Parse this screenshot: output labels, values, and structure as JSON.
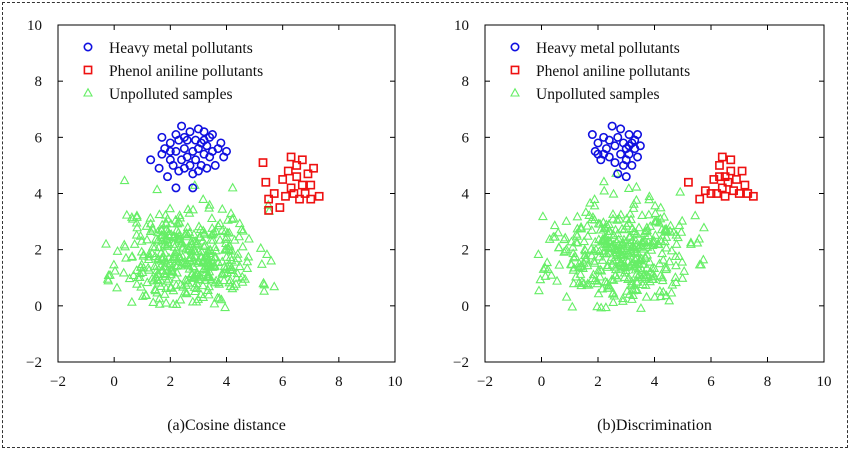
{
  "chart_data": [
    {
      "type": "scatter",
      "caption": "(a)Cosine distance",
      "xlim": [
        -2,
        10
      ],
      "ylim": [
        -2,
        10
      ],
      "xticks": [
        -2,
        0,
        2,
        4,
        6,
        8,
        10
      ],
      "yticks": [
        -2,
        0,
        2,
        4,
        6,
        8,
        10
      ],
      "tick_labels_x": [
        "−2",
        "0",
        "2",
        "4",
        "6",
        "8",
        "10"
      ],
      "tick_labels_y": [
        "−2",
        "0",
        "2",
        "4",
        "6",
        "8",
        "10"
      ],
      "legend_position": "top-left",
      "grid": false,
      "series": [
        {
          "name": "Heavy metal pollutants",
          "marker": "circle",
          "color": "#1010e0",
          "points": [
            [
              1.3,
              5.2
            ],
            [
              1.6,
              4.9
            ],
            [
              1.7,
              5.4
            ],
            [
              1.7,
              6.0
            ],
            [
              1.8,
              5.6
            ],
            [
              1.9,
              4.6
            ],
            [
              2.0,
              5.2
            ],
            [
              2.0,
              5.8
            ],
            [
              2.1,
              5.0
            ],
            [
              2.2,
              6.1
            ],
            [
              2.2,
              5.5
            ],
            [
              2.3,
              4.8
            ],
            [
              2.3,
              5.9
            ],
            [
              2.4,
              5.2
            ],
            [
              2.4,
              6.4
            ],
            [
              2.5,
              5.6
            ],
            [
              2.5,
              4.9
            ],
            [
              2.6,
              5.9
            ],
            [
              2.6,
              5.3
            ],
            [
              2.7,
              6.2
            ],
            [
              2.7,
              5.0
            ],
            [
              2.8,
              5.5
            ],
            [
              2.8,
              4.7
            ],
            [
              2.9,
              5.9
            ],
            [
              2.9,
              5.2
            ],
            [
              3.0,
              6.3
            ],
            [
              3.0,
              5.6
            ],
            [
              3.1,
              5.0
            ],
            [
              3.1,
              5.8
            ],
            [
              3.2,
              5.4
            ],
            [
              3.2,
              6.2
            ],
            [
              3.3,
              4.9
            ],
            [
              3.3,
              5.7
            ],
            [
              3.4,
              6.0
            ],
            [
              3.4,
              5.3
            ],
            [
              3.5,
              5.5
            ],
            [
              3.5,
              6.1
            ],
            [
              3.6,
              5.0
            ],
            [
              3.7,
              5.6
            ],
            [
              3.8,
              5.8
            ],
            [
              3.9,
              5.3
            ],
            [
              4.0,
              5.5
            ],
            [
              2.2,
              4.2
            ],
            [
              2.8,
              4.2
            ],
            [
              3.0,
              4.8
            ],
            [
              2.0,
              5.5
            ],
            [
              2.5,
              6.0
            ],
            [
              3.2,
              5.9
            ]
          ]
        },
        {
          "name": "Phenol aniline pollutants",
          "marker": "square",
          "color": "#ee1111",
          "points": [
            [
              5.3,
              5.1
            ],
            [
              5.4,
              4.4
            ],
            [
              5.5,
              3.8
            ],
            [
              5.5,
              3.4
            ],
            [
              5.7,
              4.0
            ],
            [
              5.9,
              3.5
            ],
            [
              6.0,
              4.5
            ],
            [
              6.1,
              3.9
            ],
            [
              6.2,
              4.8
            ],
            [
              6.3,
              4.2
            ],
            [
              6.3,
              5.3
            ],
            [
              6.4,
              4.0
            ],
            [
              6.5,
              4.6
            ],
            [
              6.5,
              5.0
            ],
            [
              6.6,
              3.8
            ],
            [
              6.7,
              4.3
            ],
            [
              6.7,
              5.2
            ],
            [
              6.8,
              4.0
            ],
            [
              6.9,
              4.7
            ],
            [
              7.0,
              3.8
            ],
            [
              7.0,
              4.3
            ],
            [
              7.1,
              4.9
            ],
            [
              7.3,
              3.9
            ]
          ]
        },
        {
          "name": "Unpolluted samples",
          "marker": "triangle",
          "color": "#66ee66",
          "points": []
        }
      ]
    },
    {
      "type": "scatter",
      "caption": "(b)Discrimination",
      "xlim": [
        -2,
        10
      ],
      "ylim": [
        -2,
        10
      ],
      "xticks": [
        -2,
        0,
        2,
        4,
        6,
        8,
        10
      ],
      "yticks": [
        -2,
        0,
        2,
        4,
        6,
        8,
        10
      ],
      "tick_labels_x": [
        "−2",
        "0",
        "2",
        "4",
        "6",
        "8",
        "10"
      ],
      "tick_labels_y": [
        "−2",
        "0",
        "2",
        "4",
        "6",
        "8",
        "10"
      ],
      "legend_position": "top-left",
      "grid": false,
      "series": [
        {
          "name": "Heavy metal pollutants",
          "marker": "circle",
          "color": "#1010e0",
          "points": [
            [
              1.8,
              6.1
            ],
            [
              1.9,
              5.5
            ],
            [
              2.0,
              5.8
            ],
            [
              2.1,
              5.2
            ],
            [
              2.2,
              6.0
            ],
            [
              2.3,
              5.6
            ],
            [
              2.4,
              5.3
            ],
            [
              2.5,
              6.4
            ],
            [
              2.6,
              5.7
            ],
            [
              2.6,
              5.1
            ],
            [
              2.7,
              6.0
            ],
            [
              2.8,
              5.4
            ],
            [
              2.8,
              6.3
            ],
            [
              2.9,
              5.8
            ],
            [
              3.0,
              5.2
            ],
            [
              3.0,
              5.6
            ],
            [
              3.1,
              6.1
            ],
            [
              3.1,
              5.4
            ],
            [
              3.2,
              5.8
            ],
            [
              3.2,
              5.0
            ],
            [
              3.3,
              5.6
            ],
            [
              3.4,
              6.1
            ],
            [
              3.4,
              5.3
            ],
            [
              3.5,
              5.7
            ],
            [
              2.7,
              4.7
            ],
            [
              3.0,
              4.6
            ],
            [
              2.9,
              5.0
            ],
            [
              2.4,
              5.9
            ],
            [
              2.2,
              5.4
            ],
            [
              3.3,
              5.9
            ],
            [
              3.1,
              5.7
            ],
            [
              2.0,
              5.4
            ]
          ]
        },
        {
          "name": "Phenol aniline pollutants",
          "marker": "square",
          "color": "#ee1111",
          "points": [
            [
              5.2,
              4.4
            ],
            [
              5.6,
              3.8
            ],
            [
              5.8,
              4.1
            ],
            [
              6.0,
              4.0
            ],
            [
              6.1,
              4.5
            ],
            [
              6.2,
              4.0
            ],
            [
              6.3,
              4.6
            ],
            [
              6.3,
              5.0
            ],
            [
              6.4,
              4.2
            ],
            [
              6.4,
              5.3
            ],
            [
              6.5,
              3.9
            ],
            [
              6.6,
              4.4
            ],
            [
              6.7,
              4.8
            ],
            [
              6.7,
              5.2
            ],
            [
              6.8,
              4.1
            ],
            [
              6.9,
              4.5
            ],
            [
              7.0,
              4.0
            ],
            [
              7.1,
              4.8
            ],
            [
              7.2,
              4.3
            ],
            [
              7.3,
              4.0
            ],
            [
              7.5,
              3.9
            ],
            [
              6.5,
              4.6
            ]
          ]
        },
        {
          "name": "Unpolluted samples",
          "marker": "triangle",
          "color": "#66ee66",
          "points": []
        }
      ]
    }
  ]
}
